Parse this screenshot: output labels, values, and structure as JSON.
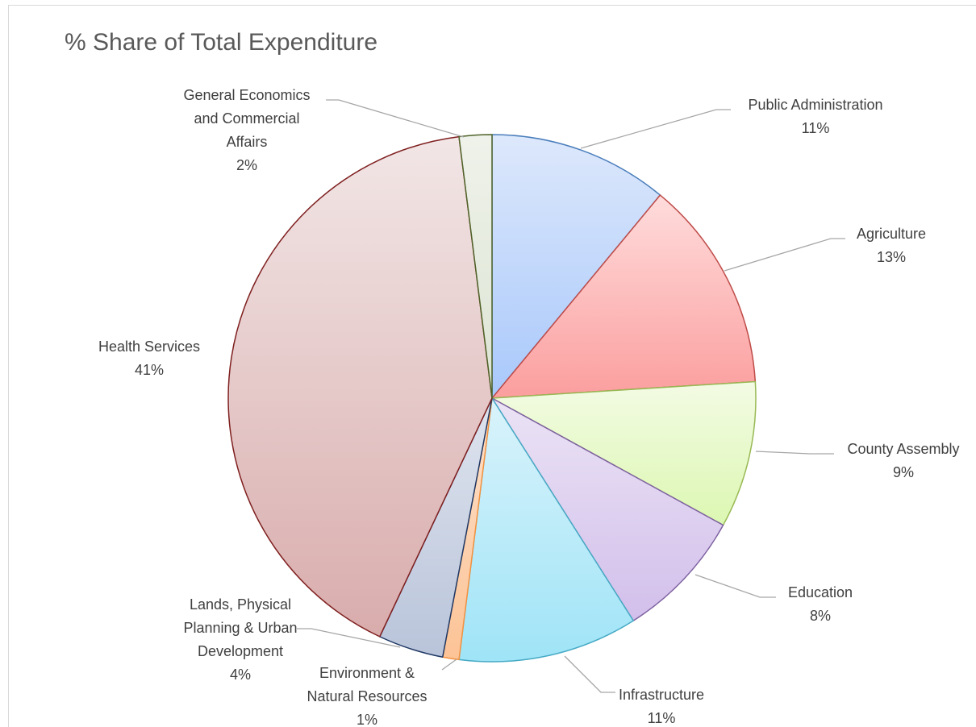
{
  "chart_data": {
    "type": "pie",
    "title": "% Share of Total Expenditure",
    "slices": [
      {
        "name": "Public Administration",
        "value": 11,
        "label": "11%",
        "color_top": "#dde8fb",
        "color_bottom": "#a8c8fb",
        "stroke": "#4a7ebb"
      },
      {
        "name": "Agriculture",
        "value": 13,
        "label": "13%",
        "color_top": "#ffdcdc",
        "color_bottom": "#fb9e9e",
        "stroke": "#be4b48"
      },
      {
        "name": "County Assembly",
        "value": 9,
        "label": "9%",
        "color_top": "#f3fbe4",
        "color_bottom": "#dcf7b2",
        "stroke": "#98b954"
      },
      {
        "name": "Education",
        "value": 8,
        "label": "8%",
        "color_top": "#ebe3f5",
        "color_bottom": "#d2bfeb",
        "stroke": "#7d60a0"
      },
      {
        "name": "Infrastructure",
        "value": 11,
        "label": "11%",
        "color_top": "#daf3fb",
        "color_bottom": "#9fe4f7",
        "stroke": "#46aac5"
      },
      {
        "name": "Environment & Natural Resources",
        "value": 1,
        "label": "1%",
        "color_top": "#fde2cc",
        "color_bottom": "#fcc396",
        "stroke": "#f69240"
      },
      {
        "name": "Lands, Physical Planning & Urban Development",
        "value": 4,
        "label": "4%",
        "color_top": "#dfe4ee",
        "color_bottom": "#b9c4da",
        "stroke": "#1f3864"
      },
      {
        "name": "Health Services",
        "value": 41,
        "label": "41%",
        "color_top": "#f2e6e6",
        "color_bottom": "#d9acac",
        "stroke": "#7f1f1f"
      },
      {
        "name": "General Economics and Commercial Affairs",
        "value": 2,
        "label": "2%",
        "color_top": "#eff2ea",
        "color_bottom": "#dce4d3",
        "stroke": "#4f6228"
      }
    ],
    "labels": [
      {
        "lines": [
          "Public Administration",
          "11%"
        ]
      },
      {
        "lines": [
          "Agriculture",
          "13%"
        ]
      },
      {
        "lines": [
          "County Assembly",
          "9%"
        ]
      },
      {
        "lines": [
          "Education",
          "8%"
        ]
      },
      {
        "lines": [
          "Infrastructure",
          "11%"
        ]
      },
      {
        "lines": [
          "Environment &",
          "Natural Resources",
          "1%"
        ]
      },
      {
        "lines": [
          "Lands, Physical",
          "Planning & Urban",
          "Development",
          "4%"
        ]
      },
      {
        "lines": [
          "Health Services",
          "41%"
        ]
      },
      {
        "lines": [
          "General Economics",
          "and Commercial",
          "Affairs",
          "2%"
        ]
      }
    ],
    "leader_color": "#a6a6a6"
  }
}
